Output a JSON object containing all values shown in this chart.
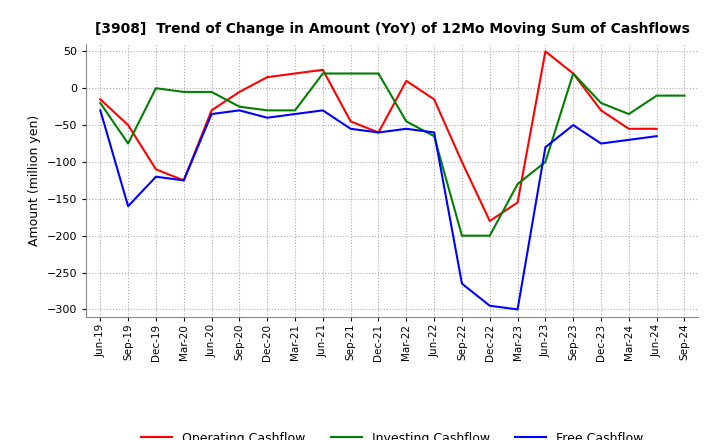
{
  "title": "[3908]  Trend of Change in Amount (YoY) of 12Mo Moving Sum of Cashflows",
  "ylabel": "Amount (million yen)",
  "ylim": [
    -310,
    60
  ],
  "yticks": [
    50,
    0,
    -50,
    -100,
    -150,
    -200,
    -250,
    -300
  ],
  "x_labels": [
    "Jun-19",
    "Sep-19",
    "Dec-19",
    "Mar-20",
    "Jun-20",
    "Sep-20",
    "Dec-20",
    "Mar-21",
    "Jun-21",
    "Sep-21",
    "Dec-21",
    "Mar-22",
    "Jun-22",
    "Sep-22",
    "Dec-22",
    "Mar-23",
    "Jun-23",
    "Sep-23",
    "Dec-23",
    "Mar-24",
    "Jun-24",
    "Sep-24"
  ],
  "operating": [
    -15,
    -50,
    -110,
    -125,
    -30,
    -5,
    15,
    20,
    25,
    -45,
    -60,
    10,
    -15,
    -100,
    -180,
    -155,
    50,
    20,
    -30,
    -55,
    -55,
    null
  ],
  "investing": [
    -20,
    -75,
    0,
    -5,
    -5,
    -25,
    -30,
    -30,
    20,
    20,
    20,
    -45,
    -65,
    -200,
    -200,
    -130,
    -100,
    20,
    -20,
    -35,
    -10,
    -10
  ],
  "free": [
    -30,
    -160,
    -120,
    -125,
    -35,
    -30,
    -40,
    -35,
    -30,
    -55,
    -60,
    -55,
    -60,
    -265,
    -295,
    -300,
    -80,
    -50,
    -75,
    -70,
    -65,
    null
  ],
  "operating_color": "#ff0000",
  "investing_color": "#008000",
  "free_color": "#0000ff",
  "bg_color": "#ffffff",
  "grid_color": "#aaaaaa"
}
